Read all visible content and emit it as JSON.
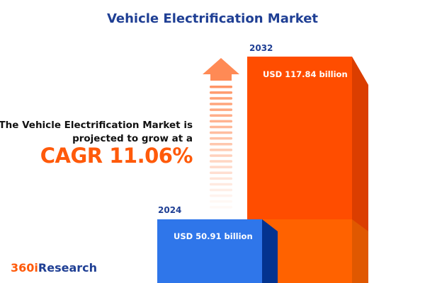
{
  "title": "Vehicle Electrification Market",
  "lead_text": [
    "The Vehicle Electrification Market is",
    "projected to grow at a"
  ],
  "cagr_text": "CAGR 11.06%",
  "chart_data": {
    "type": "bar",
    "categories": [
      "2024",
      "2032"
    ],
    "values": [
      50.91,
      117.84
    ],
    "data_labels": [
      "USD 50.91 billion",
      "USD 117.84 billion"
    ],
    "unit": "USD billion",
    "cagr_percent": 11.06,
    "colors": {
      "2024": "#2f76ea",
      "2032": "#ff4d00",
      "arrow": "#ff8a55"
    }
  },
  "logo": {
    "part1": "360i",
    "part2": "Research",
    "colors": [
      "#ff5a0a",
      "#1f3f94"
    ]
  }
}
